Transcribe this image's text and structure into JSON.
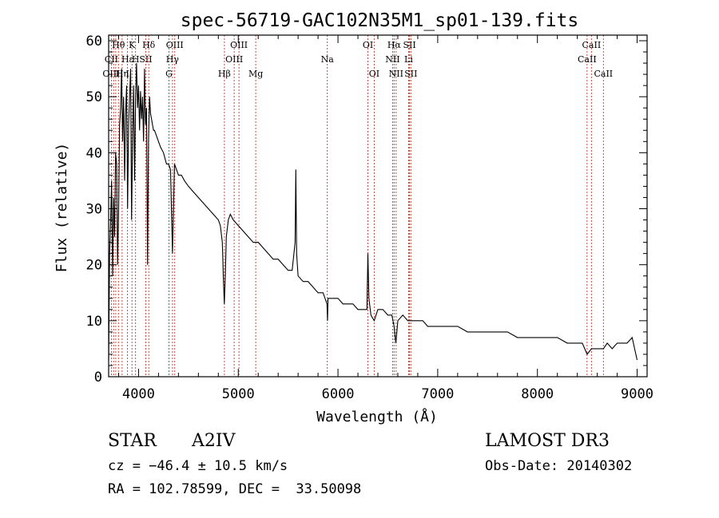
{
  "chart_data": {
    "type": "line",
    "title": "spec-56719-GAC102N35M1_sp01-139.fits",
    "xlabel": "Wavelength (Å)",
    "ylabel": "Flux (relative)",
    "xlim": [
      3700,
      9100
    ],
    "ylim": [
      0,
      61
    ],
    "xticks": [
      4000,
      5000,
      6000,
      7000,
      8000,
      9000
    ],
    "yticks": [
      0,
      10,
      20,
      30,
      40,
      50,
      60
    ],
    "grid": false,
    "series": [
      {
        "name": "spectrum",
        "x": [
          3700,
          3710,
          3720,
          3730,
          3740,
          3750,
          3760,
          3770,
          3780,
          3790,
          3800,
          3810,
          3820,
          3830,
          3840,
          3850,
          3860,
          3870,
          3880,
          3890,
          3900,
          3910,
          3920,
          3930,
          3940,
          3950,
          3960,
          3970,
          3980,
          3990,
          4000,
          4010,
          4020,
          4030,
          4040,
          4050,
          4060,
          4070,
          4080,
          4090,
          4100,
          4110,
          4120,
          4130,
          4140,
          4150,
          4160,
          4180,
          4200,
          4220,
          4250,
          4280,
          4300,
          4320,
          4340,
          4360,
          4380,
          4400,
          4430,
          4460,
          4500,
          4550,
          4600,
          4650,
          4700,
          4750,
          4800,
          4820,
          4840,
          4850,
          4860,
          4870,
          4880,
          4900,
          4920,
          4950,
          5000,
          5050,
          5100,
          5150,
          5200,
          5250,
          5300,
          5350,
          5400,
          5450,
          5500,
          5540,
          5570,
          5577,
          5585,
          5600,
          5650,
          5700,
          5750,
          5800,
          5850,
          5890,
          5895,
          5900,
          5950,
          6000,
          6050,
          6100,
          6150,
          6200,
          6250,
          6290,
          6300,
          6310,
          6330,
          6363,
          6400,
          6450,
          6500,
          6540,
          6563,
          6580,
          6600,
          6650,
          6700,
          6720,
          6750,
          6800,
          6850,
          6900,
          6950,
          7000,
          7100,
          7200,
          7300,
          7400,
          7500,
          7600,
          7700,
          7800,
          7900,
          8000,
          8100,
          8200,
          8300,
          8400,
          8450,
          8498,
          8542,
          8600,
          8662,
          8700,
          8750,
          8800,
          8850,
          8900,
          8950,
          9000
        ],
        "y": [
          3,
          22,
          28,
          35,
          18,
          32,
          25,
          40,
          38,
          20,
          30,
          45,
          48,
          55,
          42,
          50,
          35,
          47,
          52,
          30,
          45,
          50,
          55,
          28,
          43,
          52,
          35,
          50,
          56,
          48,
          52,
          44,
          51,
          46,
          50,
          42,
          55,
          45,
          48,
          20,
          42,
          50,
          47,
          46,
          45,
          44,
          44,
          43,
          42,
          41,
          40,
          38,
          38,
          37,
          22,
          38,
          37,
          36,
          36,
          35,
          34,
          33,
          32,
          31,
          30,
          29,
          28,
          27,
          24,
          18,
          13,
          18,
          25,
          28,
          29,
          28,
          27,
          26,
          25,
          24,
          24,
          23,
          22,
          21,
          21,
          20,
          19,
          19,
          24,
          37,
          22,
          18,
          17,
          17,
          16,
          15,
          15,
          13,
          10,
          14,
          14,
          14,
          13,
          13,
          13,
          12,
          12,
          12,
          22,
          14,
          11,
          10,
          12,
          12,
          11,
          11,
          9,
          6,
          10,
          11,
          10,
          10,
          10,
          10,
          10,
          9,
          9,
          9,
          9,
          9,
          8,
          8,
          8,
          8,
          8,
          7,
          7,
          7,
          7,
          7,
          6,
          6,
          6,
          4,
          5,
          5,
          5,
          6,
          5,
          6,
          6,
          6,
          7,
          3
        ]
      }
    ],
    "annotations": [
      {
        "label": "Hθ",
        "x": 3798,
        "row": 0
      },
      {
        "label": "K",
        "x": 3934,
        "row": 0
      },
      {
        "label": "Hδ",
        "x": 4102,
        "row": 0
      },
      {
        "label": "OIII",
        "x": 4363,
        "row": 0
      },
      {
        "label": "OIII",
        "x": 5007,
        "row": 0
      },
      {
        "label": "OI",
        "x": 6300,
        "row": 0
      },
      {
        "label": "Hα",
        "x": 6563,
        "row": 0
      },
      {
        "label": "SII",
        "x": 6717,
        "row": 0
      },
      {
        "label": "CaII",
        "x": 8542,
        "row": 0
      },
      {
        "label": "CII",
        "x": 3727,
        "row": 1
      },
      {
        "label": "Hε",
        "x": 3889,
        "row": 1
      },
      {
        "label": "H",
        "x": 3970,
        "row": 1
      },
      {
        "label": "SII",
        "x": 4072,
        "row": 1
      },
      {
        "label": "Hγ",
        "x": 4340,
        "row": 1
      },
      {
        "label": "OIII",
        "x": 4959,
        "row": 1
      },
      {
        "label": "Na",
        "x": 5893,
        "row": 1
      },
      {
        "label": "NII",
        "x": 6548,
        "row": 1
      },
      {
        "label": "Li",
        "x": 6708,
        "row": 1
      },
      {
        "label": "CaII",
        "x": 8498,
        "row": 1
      },
      {
        "label": "OIII",
        "x": 3727,
        "row": 2
      },
      {
        "label": "Hη",
        "x": 3835,
        "row": 2
      },
      {
        "label": "I",
        "x": 3890,
        "row": 2
      },
      {
        "label": "G",
        "x": 4305,
        "row": 2
      },
      {
        "label": "Hβ",
        "x": 4861,
        "row": 2
      },
      {
        "label": "Mg",
        "x": 5175,
        "row": 2
      },
      {
        "label": "OI",
        "x": 6363,
        "row": 2
      },
      {
        "label": "NII",
        "x": 6583,
        "row": 2
      },
      {
        "label": "SII",
        "x": 6731,
        "row": 2
      },
      {
        "label": "CaII",
        "x": 8662,
        "row": 2
      }
    ],
    "line_markers": [
      3727,
      3750,
      3771,
      3798,
      3835,
      3889,
      3934,
      3970,
      4072,
      4102,
      4305,
      4340,
      4363,
      4861,
      4959,
      5007,
      5175,
      5893,
      6300,
      6363,
      6548,
      6563,
      6583,
      6708,
      6717,
      6731,
      8498,
      8542,
      8662
    ]
  },
  "info": {
    "object_class": "STAR",
    "subclass": "A2IV",
    "cz": "cz = −46.4 ± 10.5 km/s",
    "coords": "RA = 102.78599, DEC =  33.50098",
    "survey": "LAMOST DR3",
    "obs_date": "Obs-Date: 20140302"
  },
  "colors": {
    "axis": "#000000",
    "spectrum": "#000000",
    "marker": "#c0392b"
  }
}
